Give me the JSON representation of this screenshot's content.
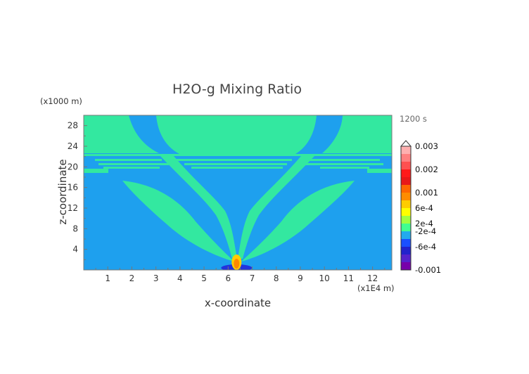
{
  "chart_data": {
    "type": "heatmap",
    "title": "H2O-g Mixing Ratio",
    "xlabel": "x-coordinate",
    "ylabel": "z-coordinate",
    "x_units": "(x1E4 m)",
    "y_units": "(x1000 m)",
    "time_label": "1200 s",
    "xlim": [
      0,
      12.8
    ],
    "ylim": [
      0,
      30
    ],
    "x_ticks": [
      "1",
      "2",
      "3",
      "4",
      "5",
      "6",
      "7",
      "8",
      "9",
      "10",
      "11",
      "12"
    ],
    "y_ticks": [
      "4",
      "8",
      "12",
      "16",
      "20",
      "24",
      "28"
    ],
    "colorbar": {
      "labels": [
        "0.003",
        "0.002",
        "0.001",
        "6e-4",
        "2e-4",
        "-2e-4",
        "-6e-4",
        "-0.001"
      ],
      "colors": [
        "#ffb0b0",
        "#ff8080",
        "#ff5050",
        "#ff1a1a",
        "#e81818",
        "#ff6600",
        "#ff8c00",
        "#ffcc00",
        "#ffff00",
        "#a0ff40",
        "#40ff90",
        "#22aaee",
        "#1a4fff",
        "#2222cc",
        "#5522cc",
        "#7700aa"
      ]
    },
    "background_color": "#1ea0ee",
    "plume_color": "#33e8a0",
    "source_color": "#ff8800",
    "source_x": 6.35
  }
}
